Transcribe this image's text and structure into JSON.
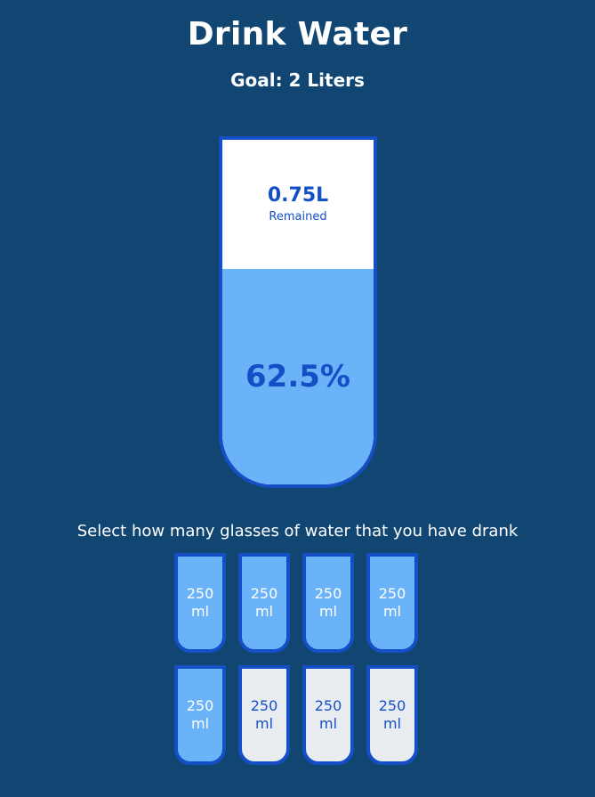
{
  "header": {
    "title": "Drink Water",
    "goal": "Goal: 2 Liters"
  },
  "main_cup": {
    "remained_value": "0.75L",
    "remained_label": "Remained",
    "percentage": "62.5%",
    "fill_fraction": 0.625
  },
  "instruction": "Select how many glasses of water that you have drank",
  "small_cups": [
    {
      "amount": "250",
      "unit": "ml",
      "filled": true
    },
    {
      "amount": "250",
      "unit": "ml",
      "filled": true
    },
    {
      "amount": "250",
      "unit": "ml",
      "filled": true
    },
    {
      "amount": "250",
      "unit": "ml",
      "filled": true
    },
    {
      "amount": "250",
      "unit": "ml",
      "filled": true
    },
    {
      "amount": "250",
      "unit": "ml",
      "filled": false
    },
    {
      "amount": "250",
      "unit": "ml",
      "filled": false
    },
    {
      "amount": "250",
      "unit": "ml",
      "filled": false
    }
  ],
  "colors": {
    "background": "#114673",
    "accent": "#144fc6",
    "water": "#6ab3f8",
    "empty_cup": "#e9edf2"
  }
}
